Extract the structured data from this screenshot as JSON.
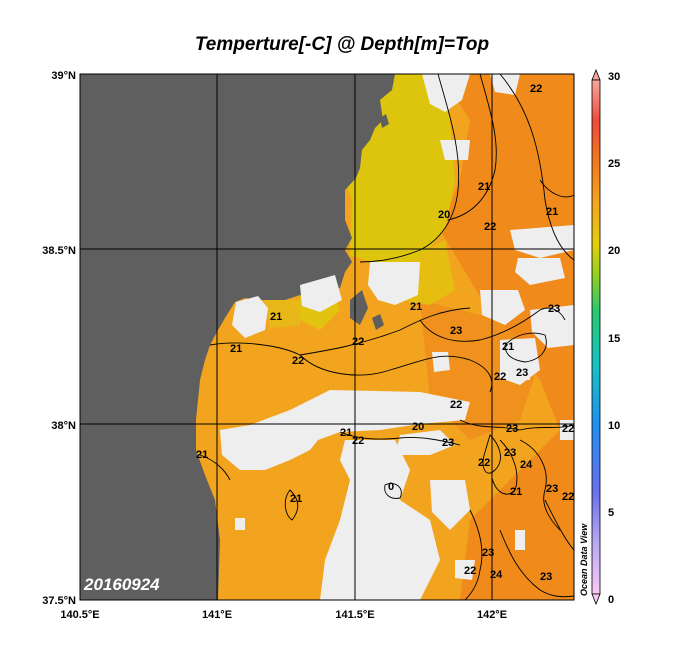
{
  "title": "Temperture[-C] @ Depth[m]=Top",
  "date": "20160924",
  "credit": "Ocean Data View",
  "lat_ticks": [
    "39°N",
    "38.5°N",
    "38°N",
    "37.5°N"
  ],
  "lon_ticks": [
    "140.5°E",
    "141°E",
    "141.5°E",
    "142°E"
  ],
  "colorbar": {
    "ticks": [
      "30",
      "25",
      "20",
      "15",
      "10",
      "5",
      "0"
    ],
    "range": [
      0,
      30
    ]
  },
  "contour_labels": [
    "22",
    "21",
    "21",
    "20",
    "22",
    "21",
    "21",
    "22",
    "21",
    "22",
    "23",
    "21",
    "23",
    "23",
    "22",
    "22",
    "23",
    "22",
    "20",
    "21",
    "21",
    "23",
    "22",
    "22",
    "24",
    "23",
    "23",
    "21",
    "0",
    "21",
    "22",
    "23",
    "23",
    "22",
    "24"
  ],
  "colors": {
    "land": "#5f5f5f",
    "nodata": "#eeeeee",
    "warm": "#f08c1e",
    "mid": "#f7ab24",
    "cool": "#dcc50e"
  }
}
